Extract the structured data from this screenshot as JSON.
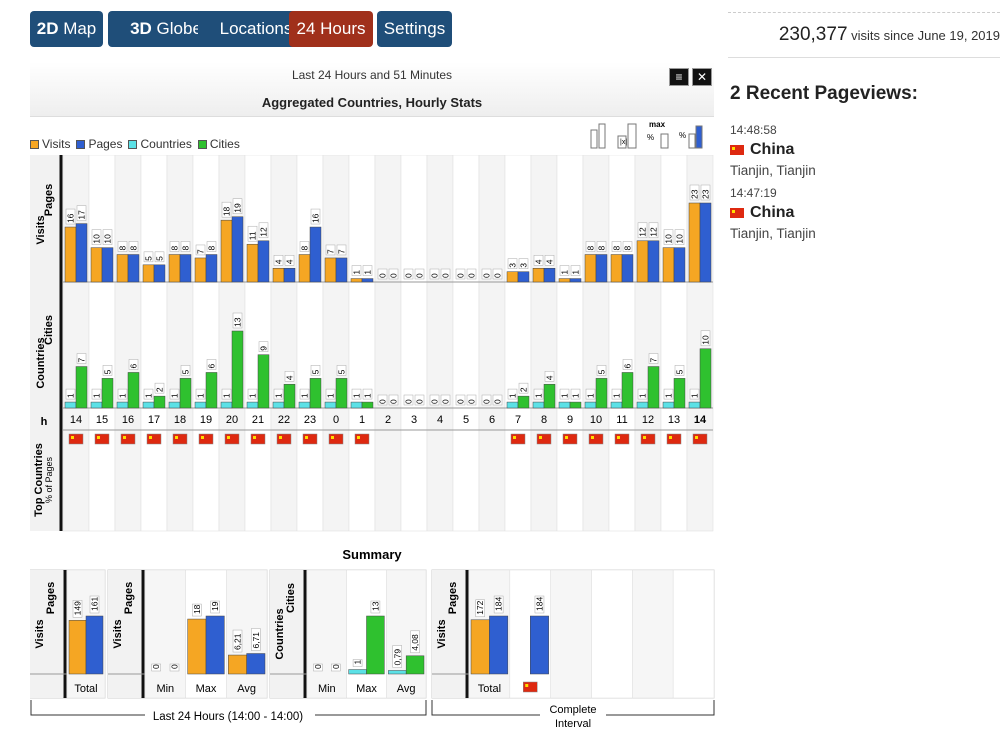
{
  "nav": [
    {
      "label": "2D",
      "label_rest": " Map",
      "color": "#1f4e79"
    },
    {
      "label": "3D",
      "label_rest": " Globe",
      "color": "#1f4e79"
    },
    {
      "label": "",
      "label_rest": "Locations",
      "color": "#1f4e79"
    },
    {
      "label": "",
      "label_rest": "24 Hours",
      "color": "#a0301b"
    },
    {
      "label": "",
      "label_rest": "Settings",
      "color": "#1f4e79"
    }
  ],
  "stats": {
    "count": "230,377",
    "suffix": " visits since June 19, 2019"
  },
  "recent": {
    "title": "2 Recent Pageviews:",
    "items": [
      {
        "time": "14:48:58",
        "country": "China",
        "city": "Tianjin, Tianjin"
      },
      {
        "time": "14:47:19",
        "country": "China",
        "city": "Tianjin, Tianjin"
      }
    ]
  },
  "panel": {
    "subtitle": "Last 24 Hours and 51 Minutes",
    "title": "Aggregated Countries, Hourly Stats",
    "menu_icon": "menu-icon",
    "close_icon": "close-icon"
  },
  "legend": [
    {
      "label": "Visits",
      "color": "#f5a623"
    },
    {
      "label": "Pages",
      "color": "#2f5fd0"
    },
    {
      "label": "Countries",
      "color": "#5ce1e6"
    },
    {
      "label": "Cities",
      "color": "#2fc12f"
    }
  ],
  "tools": [
    "bar-height-icon",
    "linear-scale-icon",
    "max-percent-icon",
    "percent-scale-icon"
  ],
  "chart_data": [
    {
      "type": "bar",
      "x_label": "h",
      "hours": [
        "14",
        "15",
        "16",
        "17",
        "18",
        "19",
        "20",
        "21",
        "22",
        "23",
        "0",
        "1",
        "2",
        "3",
        "4",
        "5",
        "6",
        "7",
        "8",
        "9",
        "10",
        "11",
        "12",
        "13",
        "14"
      ],
      "current_hour_index": 24,
      "row_labels": {
        "visits_pages": [
          "Visits",
          "Pages"
        ],
        "countries_cities": [
          "Countries",
          "Cities"
        ],
        "top": [
          "Top Countries",
          "% of Pages"
        ]
      },
      "series": [
        {
          "name": "Visits",
          "color": "#f5a623",
          "values": [
            16,
            10,
            8,
            5,
            8,
            7,
            18,
            11,
            4,
            8,
            7,
            1,
            0,
            0,
            0,
            0,
            0,
            3,
            4,
            1,
            8,
            8,
            12,
            10,
            23
          ]
        },
        {
          "name": "Pages",
          "color": "#2f5fd0",
          "values": [
            17,
            10,
            8,
            5,
            8,
            8,
            19,
            12,
            4,
            16,
            7,
            1,
            0,
            0,
            0,
            0,
            0,
            3,
            4,
            1,
            8,
            8,
            12,
            10,
            23
          ]
        },
        {
          "name": "Countries",
          "color": "#5ce1e6",
          "values": [
            1,
            1,
            1,
            1,
            1,
            1,
            1,
            1,
            1,
            1,
            1,
            1,
            0,
            0,
            0,
            0,
            0,
            1,
            1,
            1,
            1,
            1,
            1,
            1,
            1
          ]
        },
        {
          "name": "Cities",
          "color": "#2fc12f",
          "values": [
            7,
            5,
            6,
            2,
            5,
            6,
            13,
            9,
            4,
            5,
            5,
            1,
            0,
            0,
            0,
            0,
            0,
            2,
            4,
            1,
            5,
            6,
            7,
            5,
            10
          ]
        }
      ],
      "top_countries": [
        1,
        1,
        1,
        1,
        1,
        1,
        1,
        1,
        1,
        1,
        1,
        1,
        0,
        0,
        0,
        0,
        0,
        1,
        1,
        1,
        1,
        1,
        1,
        1,
        1
      ]
    },
    {
      "type": "bar",
      "title": "Summary",
      "groups": [
        {
          "ylabel": [
            "Visits",
            "Pages"
          ],
          "categories": [
            "Total"
          ],
          "series": [
            {
              "name": "Visits",
              "values": [
                149
              ]
            },
            {
              "name": "Pages",
              "values": [
                161
              ]
            }
          ]
        },
        {
          "ylabel": [
            "Visits",
            "Pages"
          ],
          "categories": [
            "Min",
            "Max",
            "Avg"
          ],
          "series": [
            {
              "name": "Visits",
              "values": [
                0,
                18,
                6.21
              ]
            },
            {
              "name": "Pages",
              "values": [
                0,
                19,
                6.71
              ]
            }
          ]
        },
        {
          "ylabel": [
            "Countries",
            "Cities"
          ],
          "categories": [
            "Min",
            "Max",
            "Avg"
          ],
          "series": [
            {
              "name": "Countries",
              "values": [
                0,
                1,
                0.79
              ]
            },
            {
              "name": "Cities",
              "values": [
                0,
                13,
                4.08
              ]
            }
          ]
        },
        {
          "ylabel": [
            "Visits",
            "Pages"
          ],
          "categories": [
            "Total",
            ""
          ],
          "series": [
            {
              "name": "Visits",
              "values": [
                172,
                null
              ]
            },
            {
              "name": "Pages",
              "values": [
                184,
                184
              ]
            }
          ]
        }
      ],
      "footer": [
        "Last 24 Hours (14:00 - 14:00)",
        "Complete Interval"
      ]
    }
  ]
}
